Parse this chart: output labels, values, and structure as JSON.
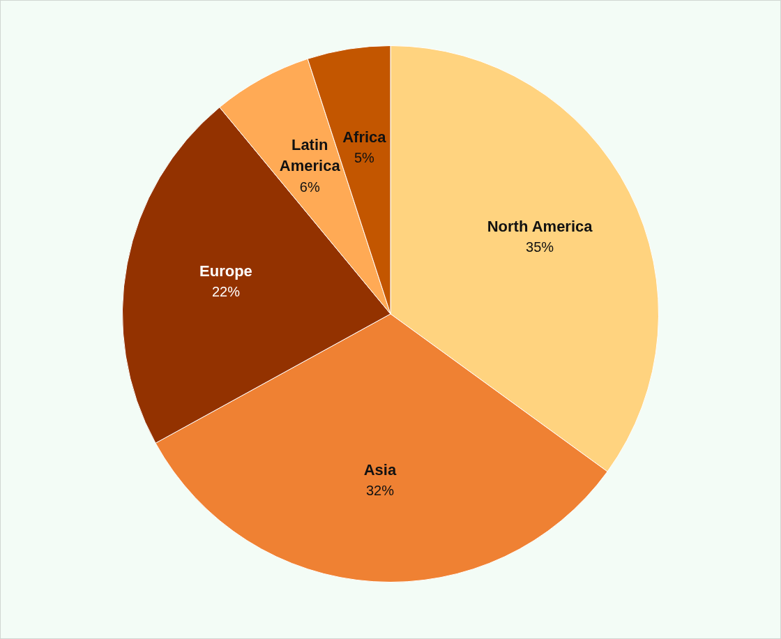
{
  "chart_data": {
    "type": "pie",
    "categories": [
      "North America",
      "Asia",
      "Europe",
      "Latin America",
      "Africa"
    ],
    "values": [
      35,
      32,
      22,
      6,
      5
    ],
    "colors": [
      "#ffd37f",
      "#ef8133",
      "#933200",
      "#ffaa55",
      "#c35600"
    ],
    "value_labels": [
      "35%",
      "32%",
      "22%",
      "6%",
      "5%"
    ],
    "legend": false
  }
}
